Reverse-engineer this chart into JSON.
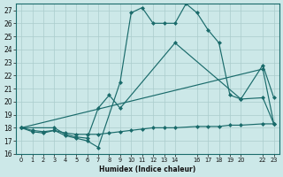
{
  "xlabel": "Humidex (Indice chaleur)",
  "xlim": [
    -0.5,
    23.5
  ],
  "ylim": [
    16,
    27.5
  ],
  "yticks": [
    16,
    17,
    18,
    19,
    20,
    21,
    22,
    23,
    24,
    25,
    26,
    27
  ],
  "xticks": [
    0,
    1,
    2,
    3,
    4,
    5,
    6,
    7,
    8,
    9,
    10,
    11,
    12,
    13,
    14,
    16,
    17,
    18,
    19,
    20,
    22,
    23
  ],
  "xtick_labels": [
    "0",
    "1",
    "2",
    "3",
    "4",
    "5",
    "6",
    "7",
    "8",
    "9",
    "10",
    "11",
    "12",
    "13",
    "14",
    "16",
    "17",
    "18",
    "19",
    "20",
    "22",
    "23"
  ],
  "bg_color": "#cce8e8",
  "line_color": "#1a6b6b",
  "grid_color": "#aacccc",
  "lines": [
    {
      "x": [
        0,
        1,
        2,
        3,
        4,
        5,
        6,
        7,
        8,
        9,
        10,
        11,
        12,
        13,
        14,
        16,
        17,
        18,
        19,
        20,
        22,
        23
      ],
      "y": [
        18,
        17.8,
        17.7,
        17.8,
        17.6,
        17.5,
        17.5,
        17.5,
        17.6,
        17.7,
        17.8,
        17.9,
        18.0,
        18.0,
        18.0,
        18.1,
        18.1,
        18.1,
        18.2,
        18.2,
        18.3,
        18.3
      ]
    },
    {
      "x": [
        0,
        22,
        23
      ],
      "y": [
        18,
        22.5,
        18.3
      ]
    },
    {
      "x": [
        0,
        3,
        4,
        5,
        6,
        7,
        8,
        9,
        14,
        20,
        22,
        23
      ],
      "y": [
        18,
        18,
        17.5,
        17.3,
        17.2,
        19.5,
        20.5,
        19.5,
        24.5,
        20.2,
        22.8,
        20.3
      ]
    },
    {
      "x": [
        0,
        1,
        2,
        3,
        4,
        5,
        6,
        7,
        9,
        10,
        11,
        12,
        13,
        14,
        15,
        16,
        17,
        18,
        19,
        20,
        22,
        23
      ],
      "y": [
        18,
        17.7,
        17.6,
        17.8,
        17.4,
        17.2,
        17.0,
        16.5,
        21.5,
        26.8,
        27.2,
        26.0,
        26.0,
        26.0,
        27.5,
        26.8,
        25.5,
        24.5,
        20.5,
        20.2,
        20.3,
        18.3
      ]
    }
  ]
}
